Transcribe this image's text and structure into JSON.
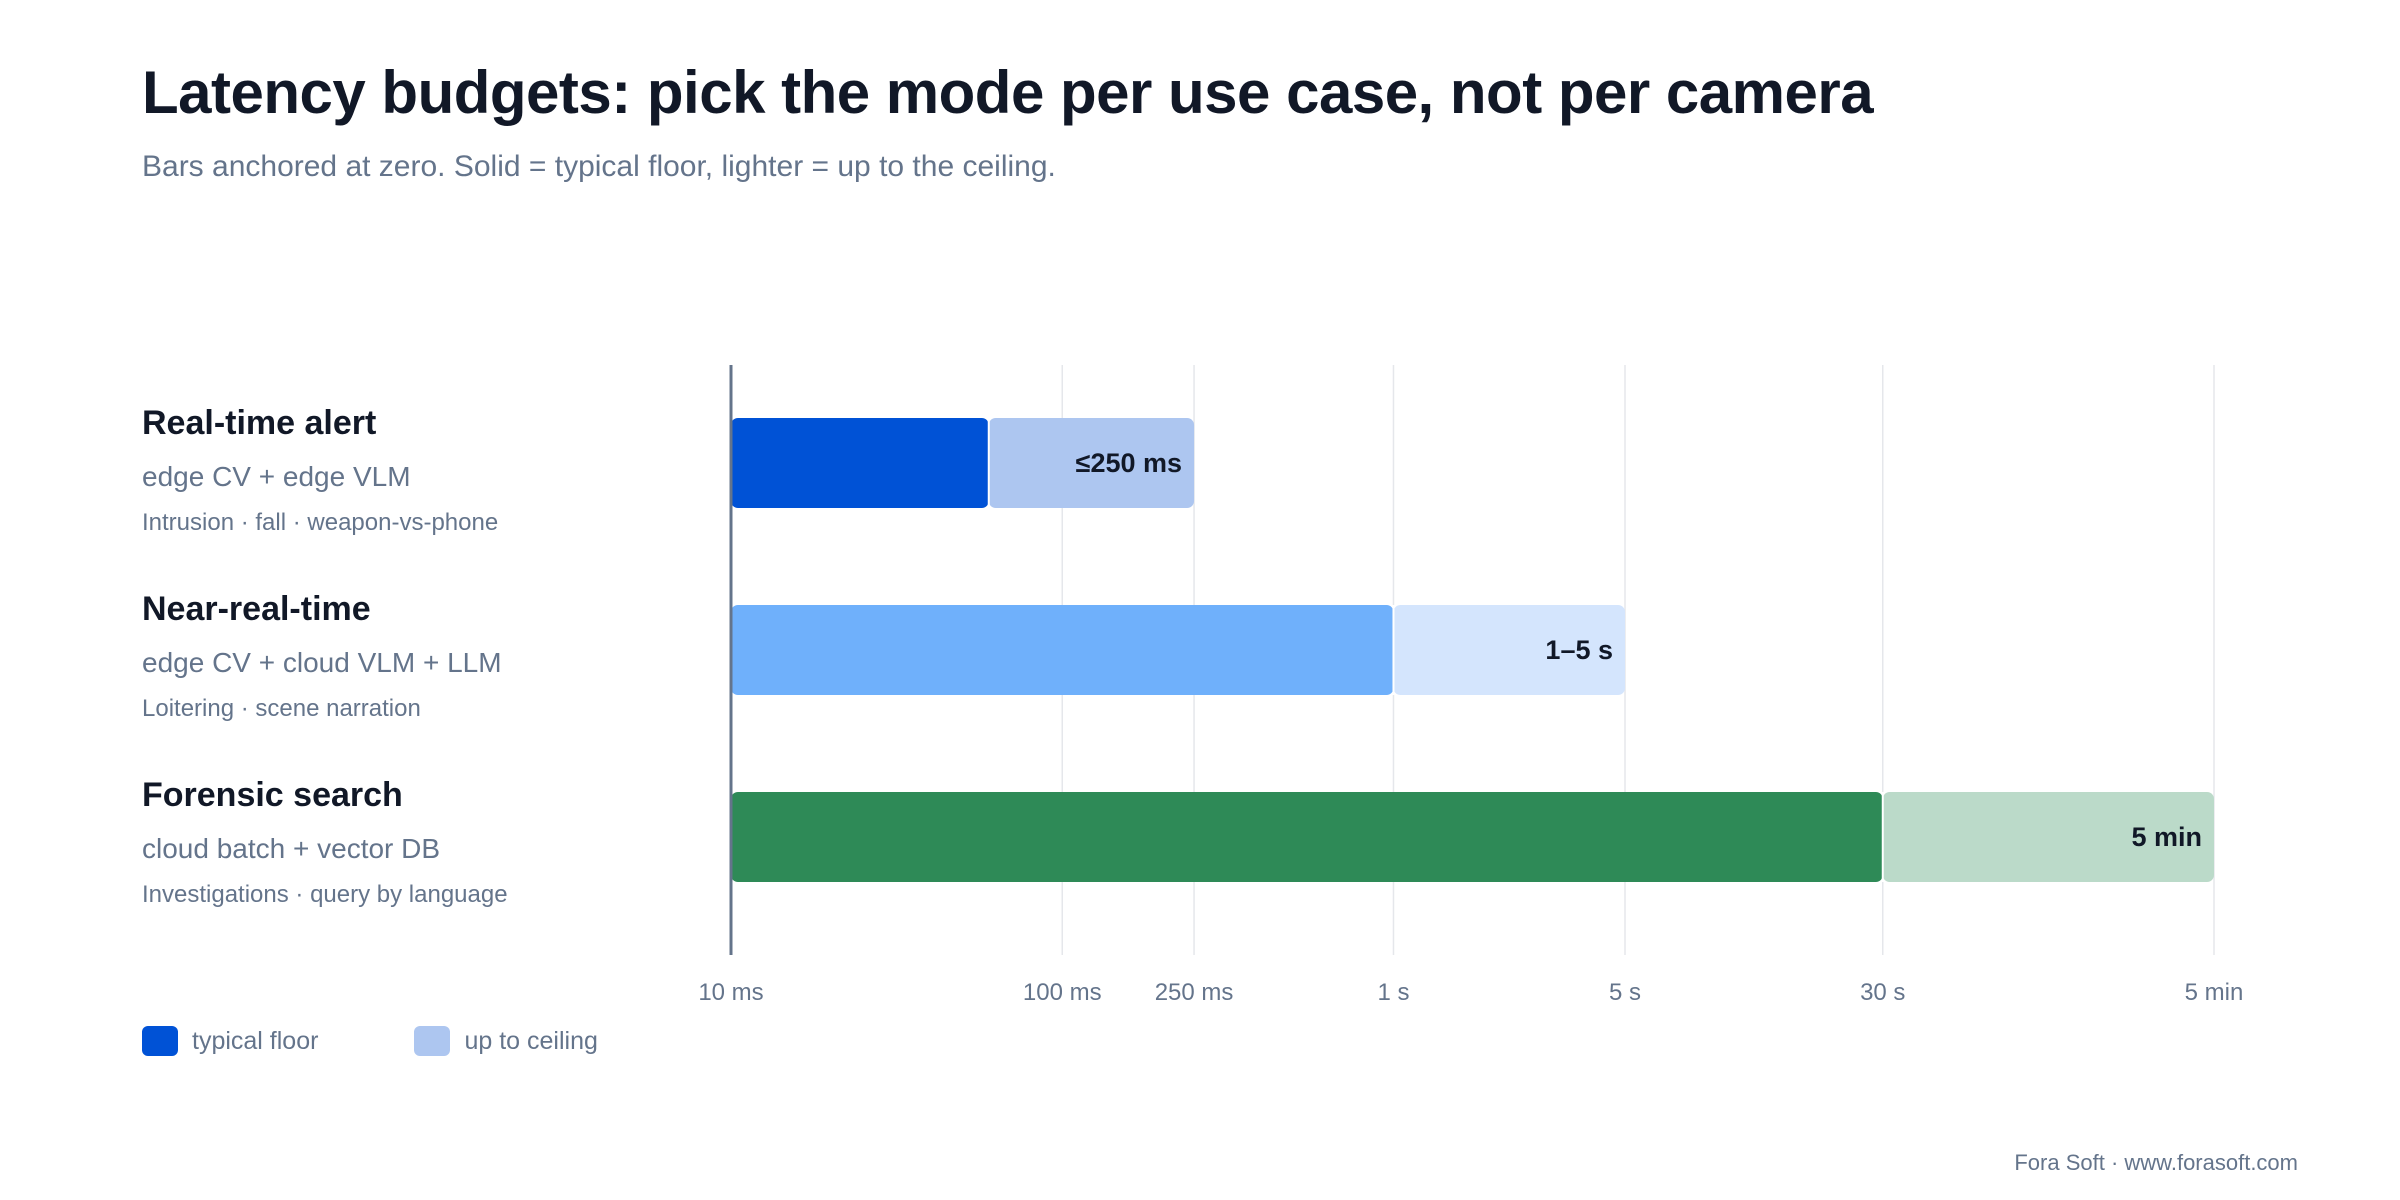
{
  "header": {
    "title": "Latency budgets: pick the mode per use case, not per camera",
    "subtitle": "Bars anchored at zero. Solid = typical floor, lighter = up to the ceiling."
  },
  "rows": [
    {
      "name": "Real-time alert",
      "stack": "edge CV + edge VLM",
      "uses": "Intrusion · fall · weapon-vs-phone"
    },
    {
      "name": "Near-real-time",
      "stack": "edge CV + cloud VLM + LLM",
      "uses": "Loitering · scene narration"
    },
    {
      "name": "Forensic search",
      "stack": "cloud batch + vector DB",
      "uses": "Investigations · query by language"
    }
  ],
  "legend": {
    "floor_label": "typical floor",
    "ceiling_label": "up to ceiling",
    "floor_color": "#0052d6",
    "ceiling_color": "#adc6f0"
  },
  "footer": "Fora Soft · www.forasoft.com",
  "chart_data": {
    "type": "bar",
    "orientation": "horizontal",
    "x_scale": "log",
    "x_unit": "seconds",
    "xlim": [
      0.01,
      300
    ],
    "grid": true,
    "legend_position": "bottom-left",
    "ticks": [
      {
        "value": 0.01,
        "label": "10 ms"
      },
      {
        "value": 0.1,
        "label": "100 ms"
      },
      {
        "value": 0.25,
        "label": "250 ms"
      },
      {
        "value": 1,
        "label": "1 s"
      },
      {
        "value": 5,
        "label": "5 s"
      },
      {
        "value": 30,
        "label": "30 s"
      },
      {
        "value": 300,
        "label": "5 min"
      }
    ],
    "categories": [
      "Real-time alert",
      "Near-real-time",
      "Forensic search"
    ],
    "bars": [
      {
        "category": "Real-time alert",
        "floor": 0.06,
        "ceiling": 0.25,
        "label": "≤250 ms",
        "floor_color": "#0052d6",
        "ceiling_color": "#adc6f0"
      },
      {
        "category": "Near-real-time",
        "floor": 1,
        "ceiling": 5,
        "label": "1–5 s",
        "floor_color": "#6fb0fb",
        "ceiling_color": "#d4e5fd"
      },
      {
        "category": "Forensic search",
        "floor": 30,
        "ceiling": 300,
        "label": "5 min",
        "floor_color": "#2e8a57",
        "ceiling_color": "#bbdac9"
      }
    ]
  }
}
